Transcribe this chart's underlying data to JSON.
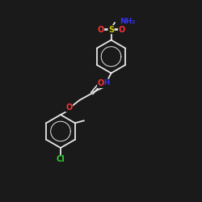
{
  "bg_color": "#1a1a1a",
  "bond_color": "#e8e8e8",
  "atom_colors": {
    "O": "#ff3333",
    "N": "#3333ff",
    "S": "#cccc00",
    "Cl": "#33cc33",
    "C": "#e8e8e8"
  },
  "fig_width": 2.5,
  "fig_height": 2.5,
  "dpi": 100,
  "lw": 1.3
}
